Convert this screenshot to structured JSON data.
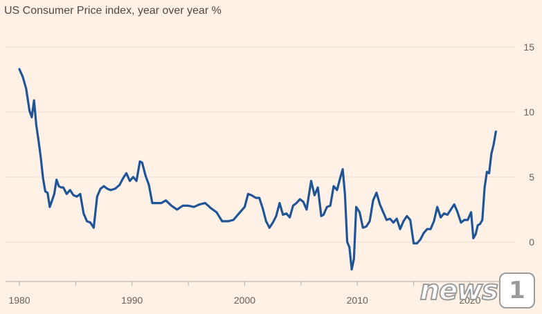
{
  "chart_data": {
    "type": "line",
    "title": "US Consumer Price index, year over year %",
    "xlabel": "",
    "ylabel": "",
    "xlim": [
      1980,
      2022.4
    ],
    "ylim": [
      -3,
      15
    ],
    "yticks": [
      0,
      5,
      10,
      15
    ],
    "xticks": [
      1980,
      1990,
      2000,
      2010,
      2020
    ],
    "xtick_labels": [
      "1980",
      "1990",
      "2000",
      "2010",
      "2020"
    ],
    "grid": true,
    "line_color": "#1f5597",
    "series": [
      {
        "x": [
          1980.0,
          1980.3,
          1980.6,
          1980.9,
          1981.1,
          1981.3,
          1981.5,
          1981.7,
          1981.9,
          1982.1,
          1982.3,
          1982.5,
          1982.7,
          1982.9,
          1983.1,
          1983.3,
          1983.5,
          1983.7,
          1983.9,
          1984.2,
          1984.5,
          1984.8,
          1985.1,
          1985.4,
          1985.7,
          1986.0,
          1986.3,
          1986.6,
          1986.9,
          1987.2,
          1987.5,
          1987.8,
          1988.1,
          1988.5,
          1988.9,
          1989.2,
          1989.5,
          1989.8,
          1990.1,
          1990.4,
          1990.7,
          1990.9,
          1991.2,
          1991.5,
          1991.8,
          1992.2,
          1992.6,
          1993.0,
          1993.5,
          1994.0,
          1994.5,
          1995.0,
          1995.5,
          1996.0,
          1996.5,
          1997.0,
          1997.5,
          1998.0,
          1998.5,
          1999.0,
          1999.5,
          2000.0,
          2000.3,
          2000.6,
          2001.0,
          2001.3,
          2001.6,
          2001.9,
          2002.2,
          2002.5,
          2002.8,
          2003.1,
          2003.4,
          2003.7,
          2004.0,
          2004.3,
          2004.6,
          2004.9,
          2005.2,
          2005.5,
          2005.7,
          2005.9,
          2006.2,
          2006.5,
          2006.8,
          2007.0,
          2007.3,
          2007.6,
          2007.9,
          2008.2,
          2008.5,
          2008.7,
          2008.9,
          2009.1,
          2009.3,
          2009.5,
          2009.7,
          2009.9,
          2010.2,
          2010.5,
          2010.8,
          2011.1,
          2011.4,
          2011.7,
          2012.0,
          2012.3,
          2012.6,
          2012.9,
          2013.2,
          2013.5,
          2013.8,
          2014.1,
          2014.4,
          2014.7,
          2015.0,
          2015.3,
          2015.6,
          2015.9,
          2016.2,
          2016.5,
          2016.8,
          2017.1,
          2017.4,
          2017.7,
          2018.0,
          2018.3,
          2018.6,
          2018.9,
          2019.2,
          2019.5,
          2019.8,
          2020.1,
          2020.3,
          2020.5,
          2020.7,
          2020.9,
          2021.1,
          2021.3,
          2021.5,
          2021.7,
          2021.9,
          2022.1,
          2022.3
        ],
        "y": [
          13.3,
          12.7,
          11.8,
          10.1,
          9.6,
          10.9,
          9.0,
          7.8,
          6.5,
          4.9,
          3.9,
          3.8,
          2.7,
          3.2,
          3.7,
          4.8,
          4.3,
          4.2,
          4.2,
          3.7,
          4.0,
          3.6,
          3.5,
          3.7,
          2.2,
          1.6,
          1.5,
          1.1,
          3.5,
          4.1,
          4.3,
          4.1,
          4.0,
          4.1,
          4.4,
          4.9,
          5.3,
          4.7,
          5.0,
          4.7,
          6.2,
          6.1,
          5.1,
          4.4,
          3.0,
          3.0,
          3.0,
          3.2,
          2.8,
          2.5,
          2.8,
          2.8,
          2.7,
          2.9,
          3.0,
          2.6,
          2.3,
          1.6,
          1.6,
          1.7,
          2.2,
          2.7,
          3.7,
          3.6,
          3.4,
          3.4,
          2.6,
          1.6,
          1.1,
          1.5,
          2.0,
          3.0,
          2.1,
          2.2,
          1.9,
          2.8,
          3.0,
          3.3,
          3.1,
          2.5,
          3.6,
          4.7,
          3.6,
          4.2,
          2.0,
          2.1,
          2.7,
          2.8,
          4.3,
          4.0,
          5.0,
          5.6,
          3.7,
          0.0,
          -0.4,
          -2.1,
          -1.3,
          2.7,
          2.3,
          1.1,
          1.2,
          1.6,
          3.2,
          3.8,
          2.9,
          2.3,
          1.7,
          1.8,
          1.5,
          1.8,
          1.0,
          1.6,
          2.0,
          1.7,
          -0.1,
          -0.1,
          0.2,
          0.7,
          1.0,
          1.0,
          1.6,
          2.7,
          1.9,
          2.2,
          2.1,
          2.5,
          2.9,
          2.3,
          1.5,
          1.7,
          1.7,
          2.3,
          0.3,
          0.6,
          1.3,
          1.4,
          1.7,
          4.2,
          5.4,
          5.3,
          6.8,
          7.5,
          8.5
        ]
      }
    ],
    "watermark": "news1"
  }
}
